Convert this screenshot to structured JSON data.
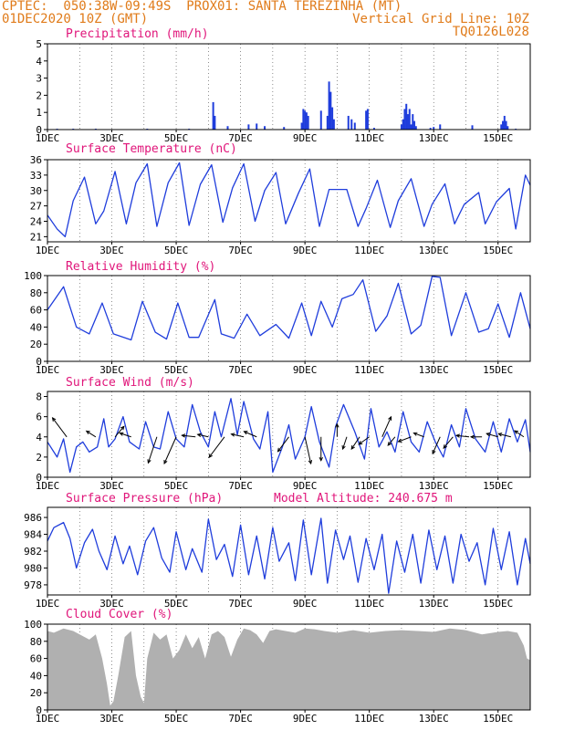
{
  "header": {
    "line1": "CPTEC:  050:38W-09:49S  PROX01: SANTA TEREZINHA (MT)",
    "line2": "01DEC2020 10Z (GMT)",
    "vgrid": "Vertical Grid Line: 10Z",
    "code": "TQ0126L028"
  },
  "colors": {
    "header": "#e07b1a",
    "title": "#e0157a",
    "series": "#1f3ddc",
    "cloud": "#b0b0b0",
    "grid": "#444444"
  },
  "x_axis": {
    "labels": [
      "1DEC",
      "3DEC",
      "5DEC",
      "7DEC",
      "9DEC",
      "11DEC",
      "13DEC",
      "15DEC"
    ],
    "label_days": [
      1,
      3,
      5,
      7,
      9,
      11,
      13,
      15
    ],
    "start_day": 1,
    "end_day": 16,
    "grid_days": [
      2,
      3,
      4,
      5,
      6,
      7,
      8,
      9,
      10,
      11,
      12,
      13,
      14,
      15,
      16
    ]
  },
  "chart_data": [
    {
      "type": "bar",
      "title": "Precipitation (mm/h)",
      "ylim": [
        0,
        5
      ],
      "yticks": [
        0,
        1,
        2,
        3,
        4,
        5
      ],
      "x_day": [
        1.3,
        1.8,
        2.5,
        4.1,
        5.4,
        6.15,
        6.2,
        6.6,
        7.25,
        7.5,
        7.75,
        8.35,
        8.9,
        8.95,
        9.0,
        9.05,
        9.1,
        9.5,
        9.7,
        9.75,
        9.8,
        9.85,
        9.9,
        10.35,
        10.45,
        10.55,
        10.9,
        10.95,
        11.15,
        12.0,
        12.05,
        12.1,
        12.15,
        12.2,
        12.25,
        12.3,
        12.35,
        12.4,
        12.45,
        12.9,
        13.0,
        13.2,
        14.2,
        15.1,
        15.15,
        15.2,
        15.25,
        15.3,
        15.55
      ],
      "values": [
        0.05,
        0.05,
        0.05,
        0.05,
        0.05,
        1.6,
        0.8,
        0.2,
        0.3,
        0.35,
        0.2,
        0.15,
        0.4,
        1.2,
        1.1,
        1.0,
        0.8,
        1.1,
        0.8,
        2.8,
        2.2,
        1.3,
        0.6,
        0.8,
        0.6,
        0.4,
        1.1,
        1.2,
        0.1,
        0.3,
        0.6,
        1.2,
        1.5,
        0.9,
        1.2,
        0.3,
        0.9,
        0.5,
        0.2,
        0.1,
        0.15,
        0.3,
        0.25,
        0.3,
        0.5,
        0.8,
        0.5,
        0.2,
        0.05
      ]
    },
    {
      "type": "line",
      "title": "Surface Temperature (nC)",
      "ylim": [
        20,
        36
      ],
      "yticks": [
        21,
        24,
        27,
        30,
        33,
        36
      ],
      "x_day": [
        1.0,
        1.3,
        1.55,
        1.8,
        2.15,
        2.5,
        2.75,
        3.1,
        3.45,
        3.75,
        4.1,
        4.4,
        4.75,
        5.1,
        5.4,
        5.75,
        6.1,
        6.45,
        6.75,
        7.1,
        7.45,
        7.75,
        8.1,
        8.4,
        8.8,
        9.15,
        9.45,
        9.75,
        10.3,
        10.65,
        10.9,
        11.25,
        11.65,
        11.9,
        12.3,
        12.7,
        12.95,
        13.35,
        13.65,
        13.95,
        14.4,
        14.6,
        14.95,
        15.35,
        15.55,
        15.85,
        16.0
      ],
      "values": [
        25.2,
        22.5,
        21.0,
        28.0,
        32.6,
        23.5,
        26.0,
        33.7,
        23.5,
        31.5,
        35.2,
        23.0,
        31.5,
        35.4,
        23.2,
        31.2,
        35.0,
        23.8,
        30.5,
        35.2,
        24.0,
        30.0,
        33.5,
        23.5,
        29.5,
        34.2,
        23.0,
        30.2,
        30.2,
        23.0,
        26.5,
        32.0,
        22.8,
        28.0,
        32.3,
        23.0,
        27.3,
        31.3,
        23.5,
        27.3,
        29.6,
        23.5,
        27.8,
        30.4,
        22.5,
        33.0,
        31.0
      ]
    },
    {
      "type": "line",
      "title": "Relative Humidity (%)",
      "ylim": [
        0,
        100
      ],
      "yticks": [
        0,
        20,
        40,
        60,
        80,
        100
      ],
      "x_day": [
        1.0,
        1.5,
        1.9,
        2.3,
        2.7,
        3.05,
        3.6,
        3.95,
        4.35,
        4.7,
        5.05,
        5.4,
        5.7,
        6.2,
        6.4,
        6.8,
        7.2,
        7.6,
        8.1,
        8.5,
        8.9,
        9.2,
        9.5,
        9.85,
        10.15,
        10.5,
        10.8,
        11.2,
        11.55,
        11.9,
        12.3,
        12.6,
        12.95,
        13.2,
        13.55,
        14.0,
        14.4,
        14.7,
        15.0,
        15.35,
        15.7,
        16.0
      ],
      "values": [
        60,
        87,
        40,
        32,
        68,
        32,
        25,
        70,
        34,
        26,
        68,
        28,
        28,
        72,
        32,
        27,
        55,
        30,
        43,
        27,
        68,
        30,
        70,
        40,
        73,
        78,
        95,
        35,
        53,
        91,
        32,
        42,
        99,
        98,
        30,
        80,
        34,
        38,
        67,
        28,
        80,
        38
      ]
    },
    {
      "type": "line",
      "title": "Surface Wind (m/s)",
      "ylim": [
        0,
        8.5
      ],
      "yticks": [
        0,
        2,
        4,
        6,
        8
      ],
      "x_day": [
        1.0,
        1.3,
        1.5,
        1.7,
        1.9,
        2.1,
        2.3,
        2.55,
        2.75,
        2.9,
        3.1,
        3.35,
        3.55,
        3.85,
        4.05,
        4.3,
        4.5,
        4.75,
        5.0,
        5.25,
        5.5,
        5.75,
        6.0,
        6.2,
        6.4,
        6.7,
        6.9,
        7.1,
        7.4,
        7.6,
        7.85,
        8.0,
        8.3,
        8.5,
        8.7,
        9.0,
        9.2,
        9.45,
        9.75,
        9.95,
        10.2,
        10.55,
        10.85,
        11.05,
        11.3,
        11.55,
        11.8,
        12.05,
        12.3,
        12.55,
        12.8,
        13.05,
        13.3,
        13.55,
        13.8,
        14.0,
        14.3,
        14.6,
        14.85,
        15.1,
        15.35,
        15.6,
        15.85,
        16.0
      ],
      "values": [
        3.5,
        2.0,
        3.8,
        0.5,
        3.0,
        3.5,
        2.5,
        3.0,
        5.8,
        3.0,
        3.8,
        6.0,
        3.5,
        2.8,
        5.5,
        3.0,
        2.8,
        6.5,
        3.8,
        3.0,
        7.2,
        4.5,
        3.0,
        6.5,
        4.0,
        7.8,
        4.2,
        7.5,
        3.8,
        2.8,
        6.5,
        0.5,
        3.0,
        5.2,
        1.8,
        4.0,
        7.0,
        3.5,
        1.0,
        5.0,
        7.2,
        4.5,
        1.8,
        6.8,
        3.0,
        4.5,
        2.5,
        6.5,
        3.5,
        2.5,
        5.5,
        3.5,
        2.0,
        5.2,
        3.0,
        6.8,
        3.8,
        2.5,
        5.5,
        2.5,
        5.8,
        3.5,
        5.7,
        2.5
      ],
      "vectors": {
        "x_day": [
          1.6,
          2.5,
          3.1,
          3.6,
          4.4,
          5.0,
          5.6,
          6.0,
          6.5,
          7.1,
          7.5,
          8.5,
          9.0,
          9.5,
          10.0,
          10.3,
          10.7,
          11.0,
          11.4,
          11.8,
          12.3,
          12.7,
          13.2,
          13.6,
          14.1,
          14.5,
          15.0,
          15.4,
          15.8
        ],
        "u": [
          -0.6,
          -0.8,
          0.6,
          -0.9,
          -0.3,
          -0.4,
          -0.9,
          -0.9,
          -0.6,
          -0.9,
          -0.7,
          -0.6,
          0.2,
          0.0,
          0.0,
          -0.3,
          -0.4,
          -0.7,
          0.4,
          -0.5,
          -0.8,
          -0.8,
          -0.4,
          -0.5,
          -0.9,
          -0.8,
          -0.7,
          -0.8,
          -0.6
        ],
        "v": [
          0.8,
          0.5,
          0.7,
          0.3,
          -0.9,
          -0.9,
          0.1,
          0.2,
          -0.8,
          0.2,
          0.3,
          -0.8,
          -0.9,
          -0.9,
          0.9,
          -0.9,
          -0.6,
          -0.5,
          0.9,
          -0.6,
          -0.3,
          0.3,
          -0.9,
          -0.6,
          0.1,
          0.0,
          0.2,
          0.2,
          0.4
        ],
        "len": [
          2.6,
          1.2,
          1.5,
          1.3,
          3.0,
          3.2,
          1.5,
          1.2,
          2.8,
          1.4,
          1.5,
          2.0,
          3.0,
          2.6,
          1.4,
          1.4,
          1.6,
          1.4,
          2.4,
          1.2,
          1.5,
          1.2,
          2.0,
          1.6,
          1.4,
          1.2,
          1.3,
          1.4,
          1.2
        ]
      }
    },
    {
      "type": "line",
      "title": "Surface Pressure (hPa)",
      "annotation": "Model Altitude: 240.675 m",
      "ylim": [
        976.8,
        987.2
      ],
      "yticks": [
        978,
        980,
        982,
        984,
        986
      ],
      "x_day": [
        1.0,
        1.2,
        1.5,
        1.7,
        1.9,
        2.15,
        2.4,
        2.6,
        2.85,
        3.1,
        3.35,
        3.55,
        3.8,
        4.05,
        4.3,
        4.55,
        4.8,
        5.0,
        5.3,
        5.5,
        5.8,
        6.0,
        6.25,
        6.5,
        6.75,
        7.0,
        7.25,
        7.5,
        7.75,
        8.0,
        8.2,
        8.5,
        8.7,
        8.95,
        9.2,
        9.5,
        9.7,
        9.95,
        10.2,
        10.4,
        10.65,
        10.9,
        11.15,
        11.4,
        11.6,
        11.85,
        12.1,
        12.35,
        12.6,
        12.85,
        13.1,
        13.35,
        13.6,
        13.85,
        14.1,
        14.35,
        14.6,
        14.85,
        15.1,
        15.35,
        15.6,
        15.85,
        16.0
      ],
      "values": [
        983.2,
        984.8,
        985.4,
        983.5,
        980.0,
        983.0,
        984.6,
        982.0,
        979.8,
        983.8,
        980.5,
        982.6,
        979.2,
        983.2,
        984.8,
        981.2,
        979.5,
        984.3,
        979.8,
        982.3,
        979.5,
        985.8,
        981.0,
        982.8,
        979.0,
        985.1,
        979.2,
        983.8,
        978.7,
        984.8,
        980.8,
        983.0,
        978.5,
        985.7,
        979.2,
        985.9,
        978.2,
        984.5,
        981.0,
        983.8,
        978.3,
        983.5,
        979.8,
        984.0,
        977.0,
        983.2,
        979.5,
        984.0,
        978.2,
        984.5,
        979.8,
        983.8,
        978.2,
        984.0,
        980.8,
        983.0,
        978.0,
        984.7,
        979.8,
        984.3,
        978.0,
        983.5,
        980.5
      ]
    },
    {
      "type": "area",
      "title": "Cloud Cover (%)",
      "ylim": [
        0,
        100
      ],
      "yticks": [
        0,
        20,
        40,
        60,
        80,
        100
      ],
      "x_day": [
        1.0,
        1.2,
        1.5,
        1.8,
        2.0,
        2.3,
        2.5,
        2.7,
        2.85,
        2.95,
        3.05,
        3.2,
        3.4,
        3.6,
        3.75,
        3.9,
        4.0,
        4.1,
        4.3,
        4.5,
        4.7,
        4.9,
        5.1,
        5.3,
        5.5,
        5.7,
        5.9,
        6.1,
        6.3,
        6.5,
        6.7,
        6.9,
        7.1,
        7.3,
        7.5,
        7.7,
        7.9,
        8.1,
        8.4,
        8.7,
        9.0,
        9.3,
        9.6,
        10.0,
        10.5,
        11.0,
        11.5,
        12.0,
        12.5,
        13.0,
        13.5,
        14.0,
        14.5,
        15.0,
        15.3,
        15.6,
        15.8,
        15.9,
        16.0
      ],
      "values": [
        92,
        90,
        95,
        92,
        88,
        82,
        88,
        60,
        30,
        5,
        10,
        40,
        85,
        92,
        40,
        15,
        8,
        60,
        90,
        82,
        88,
        60,
        70,
        88,
        72,
        85,
        60,
        88,
        92,
        85,
        62,
        82,
        95,
        93,
        88,
        78,
        92,
        94,
        92,
        90,
        95,
        94,
        92,
        90,
        93,
        90,
        92,
        93,
        92,
        91,
        95,
        93,
        88,
        91,
        92,
        90,
        75,
        60,
        58
      ]
    }
  ]
}
